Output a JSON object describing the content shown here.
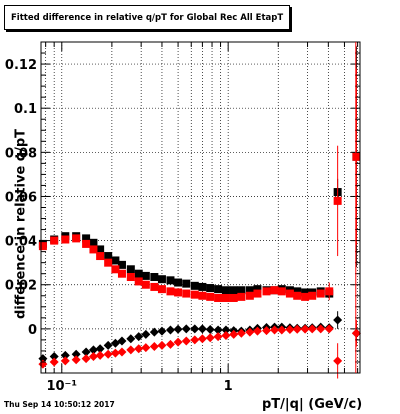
{
  "title": "Fitted difference in relative q/pT for Global Rec All EtapT",
  "timestamp": "Thu Sep 14 10:50:12 2017",
  "chart_data": {
    "type": "scatter",
    "xlabel": "pT/|q| (GeV/c)",
    "ylabel": "difference in relative q/pT",
    "xscale": "log",
    "xlim": [
      0.075,
      6.2
    ],
    "ylim": [
      -0.02,
      0.13
    ],
    "x_ticks": [
      {
        "value": 0.1,
        "label": "10⁻¹"
      },
      {
        "value": 1,
        "label": "1"
      }
    ],
    "y_ticks": [
      {
        "value": 0,
        "label": "0"
      },
      {
        "value": 0.02,
        "label": "0.02"
      },
      {
        "value": 0.04,
        "label": "0.04"
      },
      {
        "value": 0.06,
        "label": "0.06"
      },
      {
        "value": 0.08,
        "label": "0.08"
      },
      {
        "value": 0.1,
        "label": "0.1"
      },
      {
        "value": 0.12,
        "label": "0.12"
      }
    ],
    "grid": true,
    "colors": {
      "black_series": "#000000",
      "red_series": "#ff0000",
      "vline": "#ff0000"
    },
    "vertical_line_x": 5.85,
    "series": [
      {
        "marker": "square",
        "color": "#000000",
        "points": [
          [
            0.077,
            0.0385
          ],
          [
            0.09,
            0.0405
          ],
          [
            0.105,
            0.042
          ],
          [
            0.122,
            0.042
          ],
          [
            0.14,
            0.041
          ],
          [
            0.155,
            0.039
          ],
          [
            0.17,
            0.036
          ],
          [
            0.19,
            0.033
          ],
          [
            0.21,
            0.031
          ],
          [
            0.23,
            0.029
          ],
          [
            0.26,
            0.027
          ],
          [
            0.29,
            0.025
          ],
          [
            0.32,
            0.024
          ],
          [
            0.36,
            0.0235
          ],
          [
            0.4,
            0.0225
          ],
          [
            0.45,
            0.022
          ],
          [
            0.5,
            0.021
          ],
          [
            0.56,
            0.0205
          ],
          [
            0.63,
            0.0195
          ],
          [
            0.7,
            0.019
          ],
          [
            0.78,
            0.0185
          ],
          [
            0.87,
            0.018
          ],
          [
            0.97,
            0.0175
          ],
          [
            1.08,
            0.0175
          ],
          [
            1.2,
            0.0175
          ],
          [
            1.35,
            0.0175
          ],
          [
            1.5,
            0.018
          ],
          [
            1.7,
            0.0175
          ],
          [
            1.9,
            0.0175
          ],
          [
            2.1,
            0.018
          ],
          [
            2.35,
            0.0175
          ],
          [
            2.6,
            0.017
          ],
          [
            2.9,
            0.0165
          ],
          [
            3.2,
            0.0165
          ],
          [
            3.6,
            0.017
          ],
          [
            4.05,
            0.016
          ],
          [
            4.55,
            0.062
          ],
          [
            5.9,
            0.078
          ]
        ],
        "errors": [
          [
            4.55,
            0.006
          ],
          [
            5.9,
            0.05
          ]
        ]
      },
      {
        "marker": "square",
        "color": "#ff0000",
        "points": [
          [
            0.077,
            0.0375
          ],
          [
            0.09,
            0.04
          ],
          [
            0.105,
            0.0405
          ],
          [
            0.122,
            0.041
          ],
          [
            0.14,
            0.0385
          ],
          [
            0.155,
            0.036
          ],
          [
            0.17,
            0.033
          ],
          [
            0.19,
            0.03
          ],
          [
            0.21,
            0.027
          ],
          [
            0.23,
            0.025
          ],
          [
            0.26,
            0.0235
          ],
          [
            0.29,
            0.0215
          ],
          [
            0.32,
            0.02
          ],
          [
            0.36,
            0.019
          ],
          [
            0.4,
            0.018
          ],
          [
            0.45,
            0.017
          ],
          [
            0.5,
            0.0165
          ],
          [
            0.56,
            0.016
          ],
          [
            0.63,
            0.0155
          ],
          [
            0.7,
            0.015
          ],
          [
            0.78,
            0.0145
          ],
          [
            0.87,
            0.014
          ],
          [
            0.97,
            0.014
          ],
          [
            1.08,
            0.014
          ],
          [
            1.2,
            0.0145
          ],
          [
            1.35,
            0.015
          ],
          [
            1.5,
            0.016
          ],
          [
            1.7,
            0.017
          ],
          [
            1.9,
            0.0175
          ],
          [
            2.1,
            0.017
          ],
          [
            2.35,
            0.016
          ],
          [
            2.6,
            0.015
          ],
          [
            2.9,
            0.0145
          ],
          [
            3.2,
            0.015
          ],
          [
            3.6,
            0.016
          ],
          [
            4.05,
            0.017
          ],
          [
            4.55,
            0.058
          ],
          [
            5.9,
            0.078
          ]
        ],
        "errors": [
          [
            4.05,
            0.004
          ],
          [
            4.55,
            0.025
          ],
          [
            5.9,
            0.04
          ]
        ]
      },
      {
        "marker": "diamond",
        "color": "#000000",
        "points": [
          [
            0.077,
            -0.0135
          ],
          [
            0.09,
            -0.0125
          ],
          [
            0.105,
            -0.012
          ],
          [
            0.122,
            -0.0115
          ],
          [
            0.14,
            -0.0105
          ],
          [
            0.155,
            -0.0095
          ],
          [
            0.17,
            -0.009
          ],
          [
            0.19,
            -0.0075
          ],
          [
            0.21,
            -0.0065
          ],
          [
            0.23,
            -0.0055
          ],
          [
            0.26,
            -0.0045
          ],
          [
            0.29,
            -0.0035
          ],
          [
            0.32,
            -0.0025
          ],
          [
            0.36,
            -0.0015
          ],
          [
            0.4,
            -0.001
          ],
          [
            0.45,
            -0.0005
          ],
          [
            0.5,
            -0.0002
          ],
          [
            0.56,
            0.0
          ],
          [
            0.63,
            0.0
          ],
          [
            0.7,
            0.0
          ],
          [
            0.78,
            -0.0003
          ],
          [
            0.87,
            -0.0005
          ],
          [
            0.97,
            -0.0005
          ],
          [
            1.08,
            -0.0008
          ],
          [
            1.2,
            -0.001
          ],
          [
            1.35,
            -0.0005
          ],
          [
            1.5,
            0.0002
          ],
          [
            1.7,
            0.0006
          ],
          [
            1.9,
            0.0008
          ],
          [
            2.1,
            0.0008
          ],
          [
            2.35,
            0.0005
          ],
          [
            2.6,
            0.0003
          ],
          [
            2.9,
            0.0003
          ],
          [
            3.2,
            0.0005
          ],
          [
            3.6,
            0.0008
          ],
          [
            4.05,
            0.0005
          ],
          [
            4.55,
            0.004
          ],
          [
            5.9,
            -0.002
          ]
        ],
        "errors": [
          [
            4.55,
            0.004
          ],
          [
            5.9,
            0.004
          ]
        ]
      },
      {
        "marker": "diamond",
        "color": "#ff0000",
        "points": [
          [
            0.077,
            -0.016
          ],
          [
            0.09,
            -0.015
          ],
          [
            0.105,
            -0.0145
          ],
          [
            0.122,
            -0.014
          ],
          [
            0.14,
            -0.0135
          ],
          [
            0.155,
            -0.0125
          ],
          [
            0.17,
            -0.012
          ],
          [
            0.19,
            -0.0115
          ],
          [
            0.21,
            -0.011
          ],
          [
            0.23,
            -0.0105
          ],
          [
            0.26,
            -0.0095
          ],
          [
            0.29,
            -0.009
          ],
          [
            0.32,
            -0.0085
          ],
          [
            0.36,
            -0.008
          ],
          [
            0.4,
            -0.0075
          ],
          [
            0.45,
            -0.007
          ],
          [
            0.5,
            -0.006
          ],
          [
            0.56,
            -0.0055
          ],
          [
            0.63,
            -0.005
          ],
          [
            0.7,
            -0.0045
          ],
          [
            0.78,
            -0.004
          ],
          [
            0.87,
            -0.0035
          ],
          [
            0.97,
            -0.003
          ],
          [
            1.08,
            -0.0025
          ],
          [
            1.2,
            -0.002
          ],
          [
            1.35,
            -0.0015
          ],
          [
            1.5,
            -0.001
          ],
          [
            1.7,
            -0.0008
          ],
          [
            1.9,
            -0.0005
          ],
          [
            2.1,
            -0.0005
          ],
          [
            2.35,
            -0.0003
          ],
          [
            2.6,
            -0.0002
          ],
          [
            2.9,
            -0.0001
          ],
          [
            3.2,
            0.0
          ],
          [
            3.6,
            0.0
          ],
          [
            4.05,
            0.0
          ],
          [
            4.55,
            -0.0145
          ],
          [
            5.9,
            -0.002
          ]
        ],
        "errors": [
          [
            4.55,
            0.008
          ],
          [
            5.9,
            0.006
          ]
        ]
      }
    ]
  }
}
